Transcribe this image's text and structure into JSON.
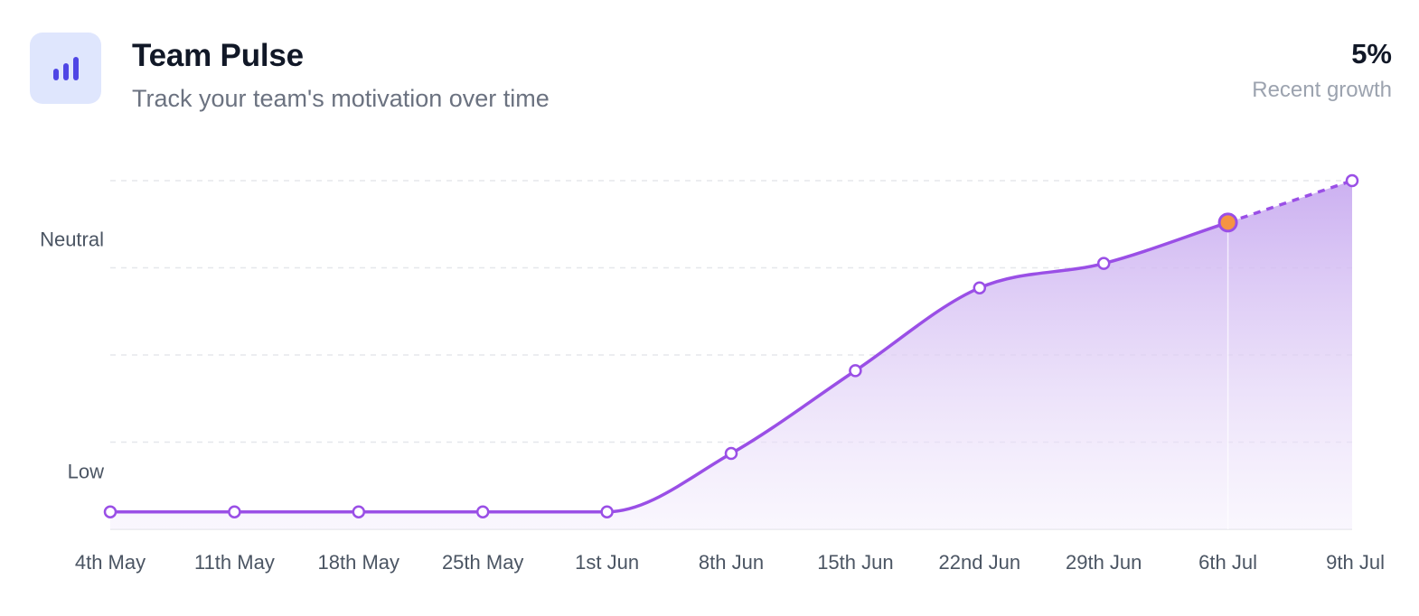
{
  "header": {
    "title": "Team Pulse",
    "subtitle": "Track your team's motivation over time",
    "icon": "bar-chart-icon"
  },
  "stat": {
    "value": "5%",
    "label": "Recent growth"
  },
  "colors": {
    "accent": "#9a4fe6",
    "highlight": "#f59443",
    "icon_bg": "#dfe6fd",
    "icon_fg": "#4f46e5",
    "area_top": "#c9acf0",
    "grid": "#e5e7eb"
  },
  "chart_data": {
    "type": "area",
    "x": [
      "4th May",
      "11th May",
      "18th May",
      "25th May",
      "1st Jun",
      "8th Jun",
      "15th Jun",
      "22nd Jun",
      "29th Jun",
      "6th Jul",
      "9th Jul"
    ],
    "series": [
      {
        "values": [
          0.2,
          0.2,
          0.2,
          0.2,
          0.2,
          0.87,
          1.82,
          2.77,
          3.05,
          3.52,
          4.0
        ],
        "projected_from_index": 9,
        "highlight_index": 9
      }
    ],
    "y_tick_labels": [
      {
        "value": 0.67,
        "label": "Low"
      },
      {
        "value": 3.33,
        "label": "Neutral"
      }
    ],
    "ylim": [
      0,
      4
    ],
    "grid": true,
    "grid_lines": [
      1,
      2,
      3,
      4
    ]
  }
}
